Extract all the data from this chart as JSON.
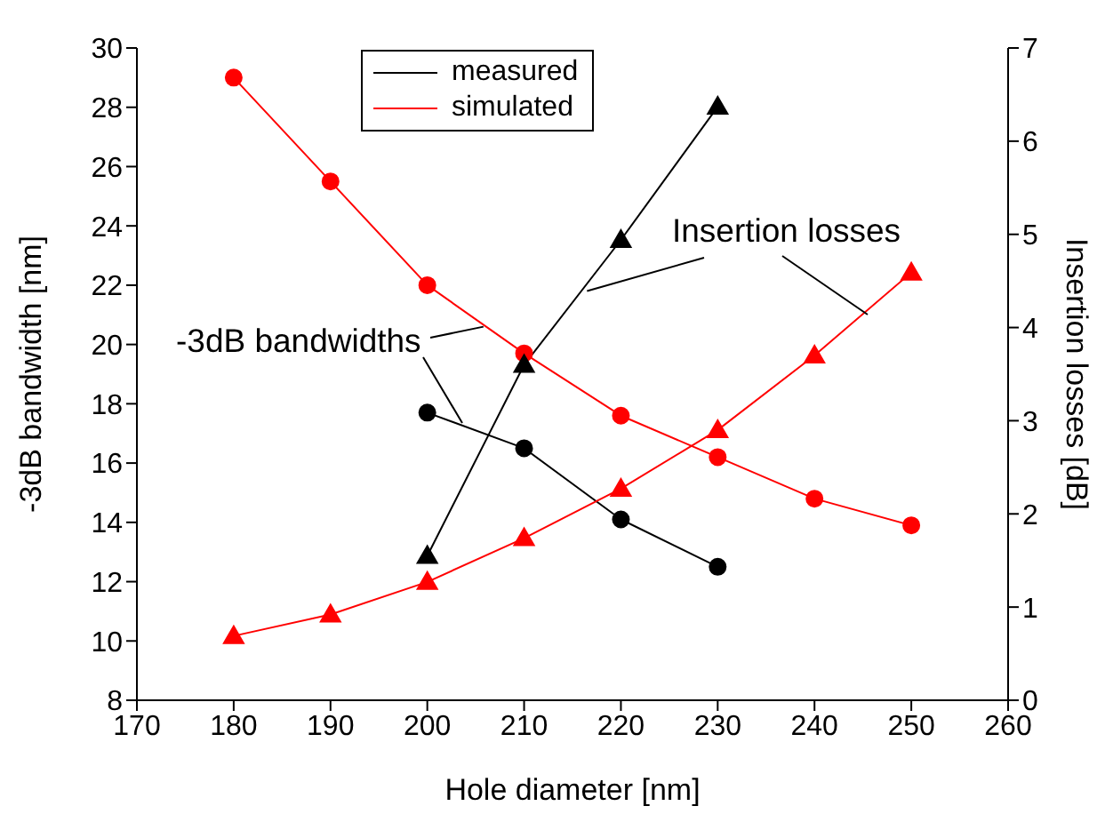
{
  "chart_data": {
    "type": "line",
    "xlabel": "Hole diameter [nm]",
    "ylabel": "-3dB bandwidth [nm]",
    "y2label": "Insertion losses [dB]",
    "xlim": [
      170,
      260
    ],
    "xticks": [
      170,
      180,
      190,
      200,
      210,
      220,
      230,
      240,
      250,
      260
    ],
    "ylim": [
      8,
      30
    ],
    "yticks": [
      8,
      10,
      12,
      14,
      16,
      18,
      20,
      22,
      24,
      26,
      28,
      30
    ],
    "y2lim": [
      0,
      7
    ],
    "y2ticks": [
      0,
      1,
      2,
      3,
      4,
      5,
      6,
      7
    ],
    "legend": "top",
    "grid": false,
    "annotations": [
      {
        "text": "Insertion losses",
        "x": 216.5,
        "y": 21.8
      },
      {
        "text": "-3dB bandwidths",
        "x": 205.8,
        "y": 20.6
      }
    ],
    "series": [
      {
        "name": "measured",
        "color": "#000000",
        "marker": "circle",
        "x": [
          200,
          210,
          220,
          230
        ],
        "values": [
          17.7,
          16.5,
          14.1,
          12.5
        ]
      },
      {
        "name": "simulated",
        "color": "#ff0000",
        "marker": "circle",
        "x": [
          180,
          190,
          200,
          210,
          220,
          230,
          240,
          250
        ],
        "values": [
          29,
          25.5,
          22,
          19.7,
          17.6,
          16.2,
          14.8,
          13.9
        ]
      },
      {
        "color": "#000000",
        "marker": "triangle",
        "axis": "y2",
        "x": [
          200,
          210,
          220,
          230
        ],
        "values": [
          1.55,
          3.6,
          4.94,
          6.37
        ]
      },
      {
        "color": "#ff0000",
        "marker": "triangle",
        "axis": "y2",
        "x": [
          180,
          190,
          200,
          210,
          220,
          230,
          240,
          250
        ],
        "values": [
          0.69,
          0.92,
          1.27,
          1.74,
          2.27,
          2.9,
          3.7,
          4.59
        ]
      }
    ]
  }
}
